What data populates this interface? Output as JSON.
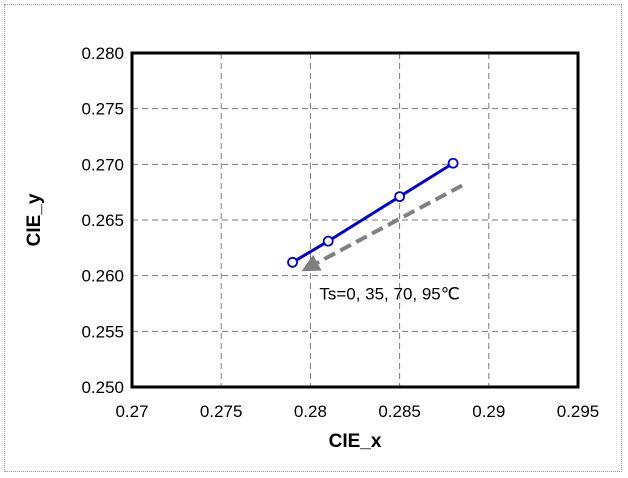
{
  "chart_data": {
    "type": "line",
    "title": "",
    "xlabel": "CIE_x",
    "ylabel": "CIE_y",
    "xlim": [
      0.27,
      0.295
    ],
    "ylim": [
      0.25,
      0.28
    ],
    "x_ticks": [
      "0.27",
      "0.275",
      "0.28",
      "0.285",
      "0.29",
      "0.295"
    ],
    "y_ticks": [
      "0.250",
      "0.255",
      "0.260",
      "0.265",
      "0.270",
      "0.275",
      "0.280"
    ],
    "grid": true,
    "legend": "none",
    "series": [
      {
        "color": "#0000d0",
        "marker": "open-circle",
        "x": [
          0.279,
          0.281,
          0.285,
          0.288
        ],
        "y": [
          0.2612,
          0.2631,
          0.2671,
          0.2701
        ]
      }
    ],
    "annotation": {
      "text": "Ts=0, 35, 70, 95℃",
      "arrow_color": "#808080",
      "arrow_style": "dashed",
      "arrow_from": [
        0.2885,
        0.2681
      ],
      "arrow_to": [
        0.2795,
        0.2604
      ],
      "text_anchor": [
        0.2805,
        0.2584
      ]
    }
  }
}
